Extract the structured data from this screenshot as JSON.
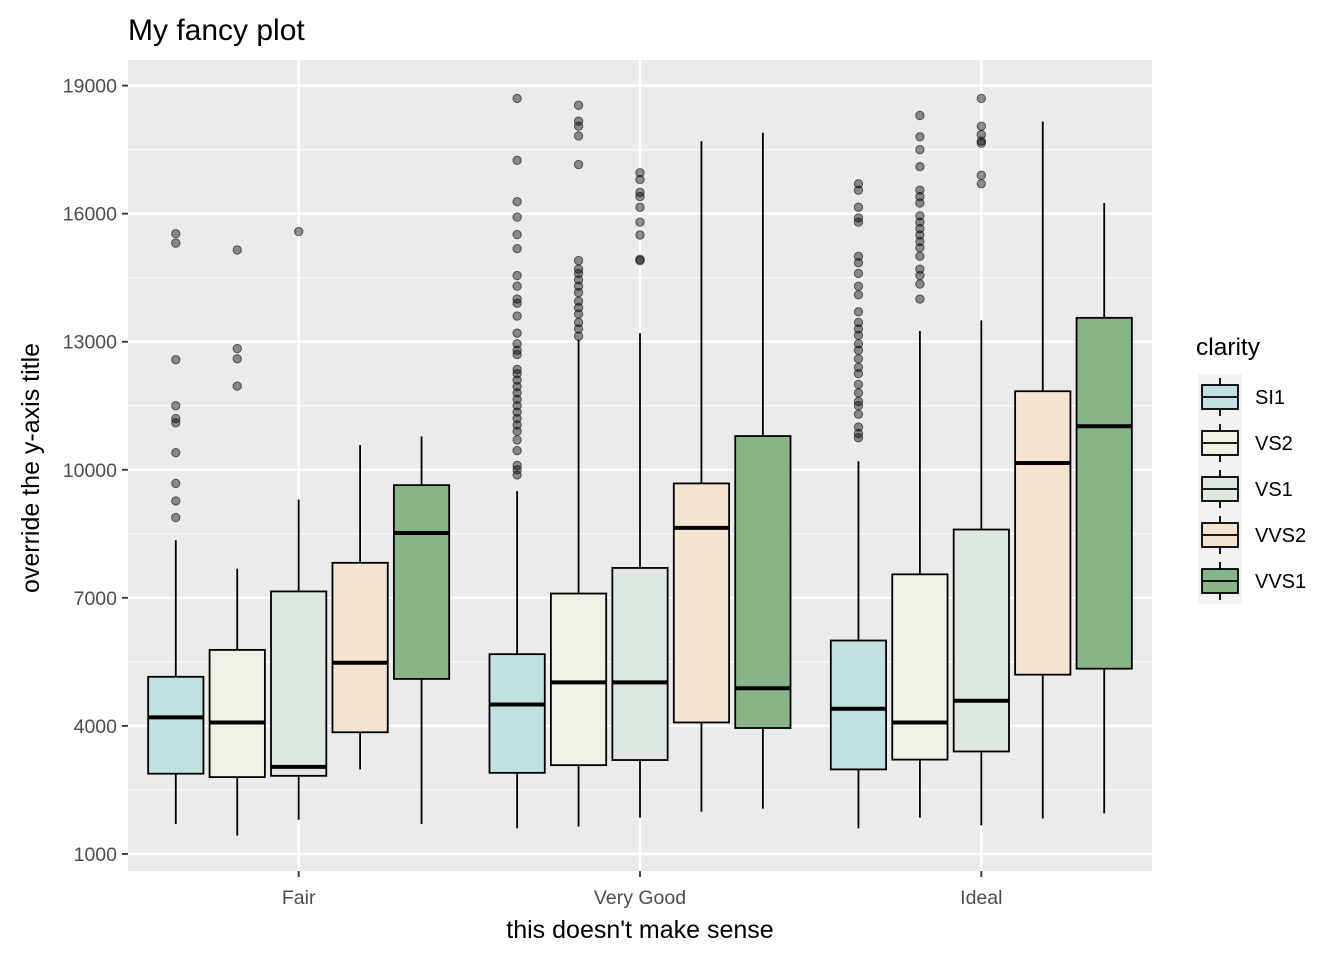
{
  "chart_data": {
    "type": "boxplot",
    "title": "My fancy plot",
    "xlabel": "this doesn't make sense",
    "ylabel": "override the y-axis title",
    "ylim": [
      600,
      19600
    ],
    "yticks": [
      1000,
      4000,
      7000,
      10000,
      13000,
      16000,
      19000
    ],
    "categories": [
      "Fair",
      "Very Good",
      "Ideal"
    ],
    "legend": {
      "title": "clarity",
      "position": "right"
    },
    "grid": true,
    "series": [
      {
        "name": "SI1",
        "color": "#c2dfe2",
        "boxes": [
          {
            "min": 1700,
            "q1": 2880,
            "median": 4200,
            "q3": 5150,
            "max": 8350,
            "outliers": [
              8880,
              9270,
              9680,
              10400,
              11100,
              11200,
              11500,
              12580,
              15310,
              15530
            ]
          },
          {
            "min": 1600,
            "q1": 2900,
            "median": 4500,
            "q3": 5680,
            "max": 9500,
            "outliers": [
              9880,
              10000,
              10100,
              10450,
              10700,
              10900,
              11050,
              11200,
              11350,
              11500,
              11650,
              11800,
              11950,
              12100,
              12250,
              12350,
              12700,
              12800,
              12950,
              13200,
              13600,
              13900,
              14000,
              14300,
              14550,
              15180,
              15510,
              15920,
              16280,
              17250,
              18700
            ]
          },
          {
            "min": 1600,
            "q1": 2980,
            "median": 4400,
            "q3": 6000,
            "max": 10200,
            "outliers": [
              10750,
              10850,
              11000,
              11300,
              11500,
              11600,
              11800,
              12000,
              12250,
              12400,
              12600,
              12800,
              12950,
              13150,
              13300,
              13450,
              13700,
              14100,
              14300,
              14600,
              14850,
              15000,
              15800,
              15900,
              16150,
              16550,
              16700
            ]
          }
        ]
      },
      {
        "name": "VS2",
        "color": "#f1f2e5",
        "boxes": [
          {
            "min": 1430,
            "q1": 2800,
            "median": 4080,
            "q3": 5780,
            "max": 7680,
            "outliers": [
              11960,
              12600,
              12840,
              15150
            ]
          },
          {
            "min": 1640,
            "q1": 3080,
            "median": 5020,
            "q3": 7100,
            "max": 13050,
            "outliers": [
              13130,
              13300,
              13450,
              13650,
              13800,
              13950,
              14150,
              14300,
              14450,
              14600,
              14700,
              14900,
              17150,
              17820,
              18050,
              18170,
              18540
            ]
          },
          {
            "min": 1850,
            "q1": 3210,
            "median": 4080,
            "q3": 7550,
            "max": 13250,
            "outliers": [
              14000,
              14350,
              14550,
              14700,
              15000,
              15200,
              15350,
              15500,
              15650,
              15800,
              15950,
              16250,
              16400,
              16550,
              17100,
              17500,
              17800,
              18300
            ]
          }
        ]
      },
      {
        "name": "VS1",
        "color": "#dfe8de",
        "boxes": [
          {
            "min": 1800,
            "q1": 2830,
            "median": 3040,
            "q3": 7150,
            "max": 9300,
            "outliers": [
              15580
            ]
          },
          {
            "min": 1850,
            "q1": 3200,
            "median": 5020,
            "q3": 7700,
            "max": 13200,
            "outliers": [
              14900,
              14930,
              15500,
              15800,
              16150,
              16400,
              16500,
              16800,
              16960
            ]
          },
          {
            "min": 1670,
            "q1": 3400,
            "median": 4590,
            "q3": 8600,
            "max": 13500,
            "outliers": [
              16700,
              16900,
              17650,
              17700,
              17850,
              18050,
              18700
            ]
          }
        ]
      },
      {
        "name": "VVS2",
        "color": "#f4e4d0",
        "boxes": [
          {
            "min": 2980,
            "q1": 3850,
            "median": 5480,
            "q3": 7820,
            "max": 10580,
            "outliers": []
          },
          {
            "min": 1990,
            "q1": 4080,
            "median": 8640,
            "q3": 9680,
            "max": 17700,
            "outliers": []
          },
          {
            "min": 1830,
            "q1": 5200,
            "median": 10160,
            "q3": 11840,
            "max": 18160,
            "outliers": []
          }
        ]
      },
      {
        "name": "VVS1",
        "color": "#89b489",
        "boxes": [
          {
            "min": 1700,
            "q1": 5100,
            "median": 8520,
            "q3": 9640,
            "max": 10780,
            "outliers": []
          },
          {
            "min": 2060,
            "q1": 3950,
            "median": 4880,
            "q3": 10790,
            "max": 17900,
            "outliers": []
          },
          {
            "min": 1950,
            "q1": 5340,
            "median": 11020,
            "q3": 13560,
            "max": 16250,
            "outliers": []
          }
        ]
      }
    ]
  }
}
